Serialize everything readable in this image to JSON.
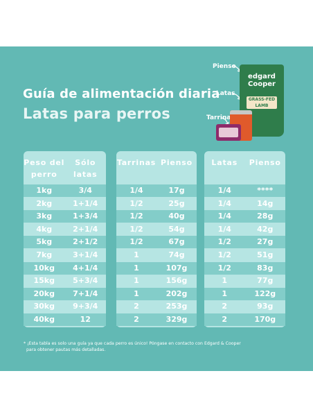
{
  "title_line1": "Guía de alimentación diaria",
  "title_line2": "Latas para perros",
  "product_labels": {
    "pienso": "Pienso",
    "latas": "Latas",
    "tarrinas": "Tarrinas"
  },
  "bag_text": {
    "brand": "edgard Cooper",
    "flavour": "GRASS-FED LAMB"
  },
  "table1": {
    "headers": [
      "Peso del perro",
      "Sólo latas"
    ],
    "rows": [
      [
        "1kg",
        "3/4"
      ],
      [
        "2kg",
        "1+1/4"
      ],
      [
        "3kg",
        "1+3/4"
      ],
      [
        "4kg",
        "2+1/4"
      ],
      [
        "5kg",
        "2+1/2"
      ],
      [
        "7kg",
        "3+1/4"
      ],
      [
        "10kg",
        "4+1/4"
      ],
      [
        "15kg",
        "5+3/4"
      ],
      [
        "20kg",
        "7+1/4"
      ],
      [
        "30kg",
        "9+3/4"
      ],
      [
        "40kg",
        "12"
      ]
    ]
  },
  "table2": {
    "headers": [
      "Tarrinas",
      "Pienso"
    ],
    "rows": [
      [
        "1/4",
        "17g"
      ],
      [
        "1/2",
        "25g"
      ],
      [
        "1/2",
        "40g"
      ],
      [
        "1/2",
        "54g"
      ],
      [
        "1/2",
        "67g"
      ],
      [
        "1",
        "74g"
      ],
      [
        "1",
        "107g"
      ],
      [
        "1",
        "156g"
      ],
      [
        "1",
        "202g"
      ],
      [
        "2",
        "253g"
      ],
      [
        "2",
        "329g"
      ]
    ]
  },
  "table3": {
    "headers": [
      "Latas",
      "Pienso"
    ],
    "rows": [
      [
        "1/4",
        "****"
      ],
      [
        "1/4",
        "14g"
      ],
      [
        "1/4",
        "28g"
      ],
      [
        "1/4",
        "42g"
      ],
      [
        "1/2",
        "27g"
      ],
      [
        "1/2",
        "51g"
      ],
      [
        "1/2",
        "83g"
      ],
      [
        "1",
        "77g"
      ],
      [
        "1",
        "122g"
      ],
      [
        "2",
        "93g"
      ],
      [
        "2",
        "170g"
      ]
    ]
  },
  "footnote_line1": "¡Esta tabla es solo una guía ya que cada perro es único! Póngase en contacto con Edgard & Cooper",
  "footnote_line2": "para obtener pautas más detalladas.",
  "colors": {
    "panel": "#62b9b4",
    "table": "#b6e5e3",
    "row_alt": "#83cdc9",
    "text": "#ffffff"
  }
}
